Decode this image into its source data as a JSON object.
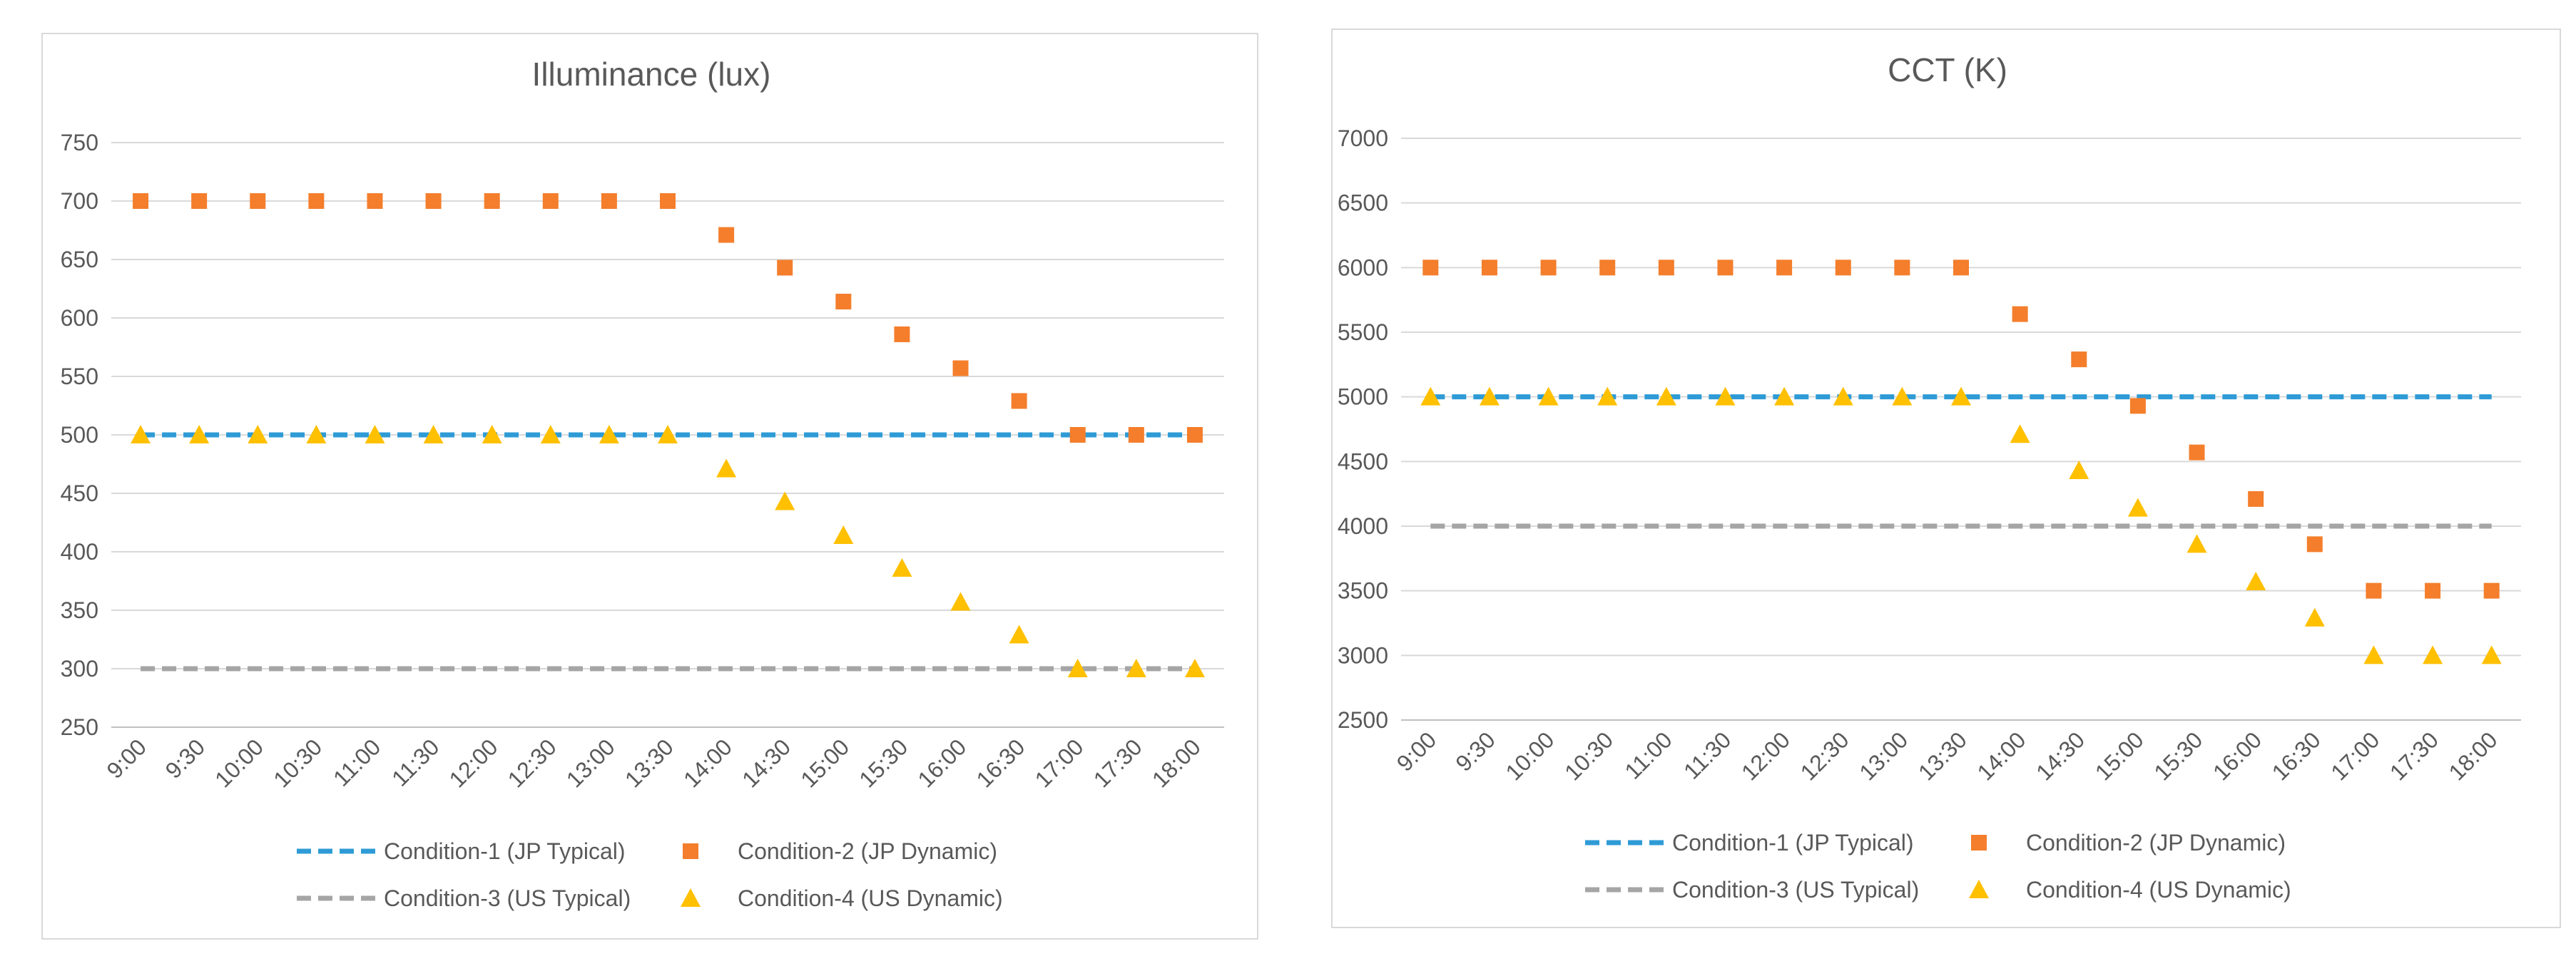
{
  "chart_data": [
    {
      "type": "line",
      "title": "Illuminance (lux)",
      "categories": [
        "9:00",
        "9:30",
        "10:00",
        "10:30",
        "11:00",
        "11:30",
        "12:00",
        "12:30",
        "13:00",
        "13:30",
        "14:00",
        "14:30",
        "15:00",
        "15:30",
        "16:00",
        "16:30",
        "17:00",
        "17:30",
        "18:00"
      ],
      "ylim": [
        250,
        750
      ],
      "yticks": [
        "250",
        "300",
        "350",
        "400",
        "450",
        "500",
        "550",
        "600",
        "650",
        "700",
        "750"
      ],
      "grid": true,
      "legend_position": "bottom",
      "series": [
        {
          "name": "Condition-1 (JP Typical)",
          "style": "dashed-line",
          "color": "#2e9bd6",
          "values": [
            500,
            500,
            500,
            500,
            500,
            500,
            500,
            500,
            500,
            500,
            500,
            500,
            500,
            500,
            500,
            500,
            500,
            500,
            500
          ]
        },
        {
          "name": "Condition-2 (JP Dynamic)",
          "style": "square-marker",
          "color": "#f47e2c",
          "values": [
            700,
            700,
            700,
            700,
            700,
            700,
            700,
            700,
            700,
            700,
            671,
            643,
            614,
            586,
            557,
            529,
            500,
            500,
            500
          ]
        },
        {
          "name": "Condition-3 (US Typical)",
          "style": "dashed-line",
          "color": "#a5a5a5",
          "values": [
            300,
            300,
            300,
            300,
            300,
            300,
            300,
            300,
            300,
            300,
            300,
            300,
            300,
            300,
            300,
            300,
            300,
            300,
            300
          ]
        },
        {
          "name": "Condition-4 (US Dynamic)",
          "style": "triangle-marker",
          "color": "#ffc000",
          "values": [
            500,
            500,
            500,
            500,
            500,
            500,
            500,
            500,
            500,
            500,
            471,
            443,
            414,
            386,
            357,
            329,
            300,
            300,
            300
          ]
        }
      ]
    },
    {
      "type": "line",
      "title": "CCT (K)",
      "categories": [
        "9:00",
        "9:30",
        "10:00",
        "10:30",
        "11:00",
        "11:30",
        "12:00",
        "12:30",
        "13:00",
        "13:30",
        "14:00",
        "14:30",
        "15:00",
        "15:30",
        "16:00",
        "16:30",
        "17:00",
        "17:30",
        "18:00"
      ],
      "ylim": [
        2500,
        7000
      ],
      "yticks": [
        "2500",
        "3000",
        "3500",
        "4000",
        "4500",
        "5000",
        "5500",
        "6000",
        "6500",
        "7000"
      ],
      "grid": true,
      "legend_position": "bottom",
      "series": [
        {
          "name": "Condition-1 (JP Typical)",
          "style": "dashed-line",
          "color": "#2e9bd6",
          "values": [
            5000,
            5000,
            5000,
            5000,
            5000,
            5000,
            5000,
            5000,
            5000,
            5000,
            5000,
            5000,
            5000,
            5000,
            5000,
            5000,
            5000,
            5000,
            5000
          ]
        },
        {
          "name": "Condition-2 (JP Dynamic)",
          "style": "square-marker",
          "color": "#f47e2c",
          "values": [
            6000,
            6000,
            6000,
            6000,
            6000,
            6000,
            6000,
            6000,
            6000,
            6000,
            5640,
            5290,
            4930,
            4570,
            4210,
            3860,
            3500,
            3500,
            3500
          ]
        },
        {
          "name": "Condition-3 (US Typical)",
          "style": "dashed-line",
          "color": "#a5a5a5",
          "values": [
            4000,
            4000,
            4000,
            4000,
            4000,
            4000,
            4000,
            4000,
            4000,
            4000,
            4000,
            4000,
            4000,
            4000,
            4000,
            4000,
            4000,
            4000,
            4000
          ]
        },
        {
          "name": "Condition-4 (US Dynamic)",
          "style": "triangle-marker",
          "color": "#ffc000",
          "values": [
            5000,
            5000,
            5000,
            5000,
            5000,
            5000,
            5000,
            5000,
            5000,
            5000,
            4710,
            4430,
            4140,
            3860,
            3570,
            3290,
            3000,
            3000,
            3000
          ]
        }
      ]
    }
  ]
}
